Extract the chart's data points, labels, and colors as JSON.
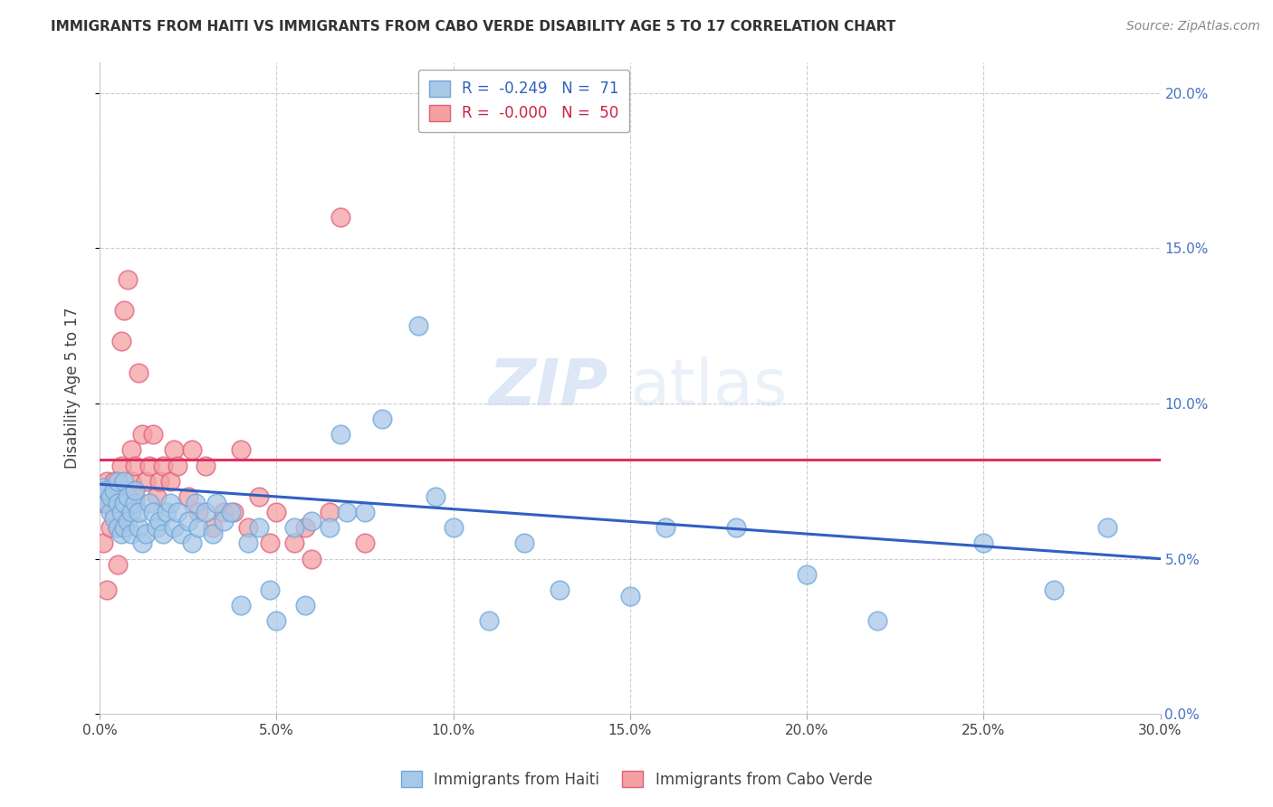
{
  "title": "IMMIGRANTS FROM HAITI VS IMMIGRANTS FROM CABO VERDE DISABILITY AGE 5 TO 17 CORRELATION CHART",
  "source": "Source: ZipAtlas.com",
  "ylabel": "Disability Age 5 to 17",
  "xlim": [
    0.0,
    0.3
  ],
  "ylim": [
    0.0,
    0.21
  ],
  "xticks": [
    0.0,
    0.05,
    0.1,
    0.15,
    0.2,
    0.25,
    0.3
  ],
  "xtick_labels": [
    "0.0%",
    "5.0%",
    "10.0%",
    "15.0%",
    "20.0%",
    "25.0%",
    "30.0%"
  ],
  "yticks": [
    0.0,
    0.05,
    0.1,
    0.15,
    0.2
  ],
  "ytick_labels": [
    "0.0%",
    "5.0%",
    "10.0%",
    "15.0%",
    "20.0%"
  ],
  "haiti_color": "#a8c8e8",
  "caboverde_color": "#f4a0a0",
  "haiti_edge": "#6fa8dc",
  "caboverde_edge": "#e06080",
  "haiti_R": "-0.249",
  "haiti_N": "71",
  "caboverde_R": "-0.000",
  "caboverde_N": "50",
  "watermark_zip": "ZIP",
  "watermark_atlas": "atlas",
  "haiti_scatter_x": [
    0.001,
    0.002,
    0.002,
    0.003,
    0.003,
    0.004,
    0.004,
    0.005,
    0.005,
    0.005,
    0.006,
    0.006,
    0.007,
    0.007,
    0.007,
    0.008,
    0.008,
    0.009,
    0.009,
    0.01,
    0.01,
    0.011,
    0.011,
    0.012,
    0.013,
    0.014,
    0.015,
    0.016,
    0.017,
    0.018,
    0.019,
    0.02,
    0.021,
    0.022,
    0.023,
    0.025,
    0.026,
    0.027,
    0.028,
    0.03,
    0.032,
    0.033,
    0.035,
    0.037,
    0.04,
    0.042,
    0.045,
    0.048,
    0.05,
    0.055,
    0.058,
    0.06,
    0.065,
    0.068,
    0.07,
    0.075,
    0.08,
    0.09,
    0.095,
    0.1,
    0.11,
    0.12,
    0.13,
    0.15,
    0.16,
    0.18,
    0.2,
    0.22,
    0.25,
    0.27,
    0.285
  ],
  "haiti_scatter_y": [
    0.073,
    0.068,
    0.072,
    0.065,
    0.07,
    0.063,
    0.072,
    0.06,
    0.068,
    0.075,
    0.058,
    0.065,
    0.06,
    0.068,
    0.075,
    0.062,
    0.07,
    0.065,
    0.058,
    0.068,
    0.072,
    0.06,
    0.065,
    0.055,
    0.058,
    0.068,
    0.065,
    0.06,
    0.062,
    0.058,
    0.065,
    0.068,
    0.06,
    0.065,
    0.058,
    0.062,
    0.055,
    0.068,
    0.06,
    0.065,
    0.058,
    0.068,
    0.062,
    0.065,
    0.035,
    0.055,
    0.06,
    0.04,
    0.03,
    0.06,
    0.035,
    0.062,
    0.06,
    0.09,
    0.065,
    0.065,
    0.095,
    0.125,
    0.07,
    0.06,
    0.03,
    0.055,
    0.04,
    0.038,
    0.06,
    0.06,
    0.045,
    0.03,
    0.055,
    0.04,
    0.06
  ],
  "caboverde_scatter_x": [
    0.001,
    0.001,
    0.002,
    0.002,
    0.003,
    0.003,
    0.004,
    0.004,
    0.005,
    0.005,
    0.006,
    0.006,
    0.006,
    0.007,
    0.007,
    0.008,
    0.008,
    0.009,
    0.009,
    0.01,
    0.01,
    0.011,
    0.012,
    0.013,
    0.014,
    0.015,
    0.016,
    0.017,
    0.018,
    0.02,
    0.021,
    0.022,
    0.025,
    0.026,
    0.028,
    0.03,
    0.032,
    0.035,
    0.038,
    0.04,
    0.042,
    0.045,
    0.048,
    0.05,
    0.055,
    0.058,
    0.06,
    0.065,
    0.068,
    0.075
  ],
  "caboverde_scatter_y": [
    0.068,
    0.055,
    0.04,
    0.075,
    0.06,
    0.07,
    0.065,
    0.075,
    0.048,
    0.06,
    0.072,
    0.08,
    0.12,
    0.065,
    0.13,
    0.068,
    0.14,
    0.075,
    0.085,
    0.07,
    0.08,
    0.11,
    0.09,
    0.075,
    0.08,
    0.09,
    0.07,
    0.075,
    0.08,
    0.075,
    0.085,
    0.08,
    0.07,
    0.085,
    0.065,
    0.08,
    0.06,
    0.065,
    0.065,
    0.085,
    0.06,
    0.07,
    0.055,
    0.065,
    0.055,
    0.06,
    0.05,
    0.065,
    0.16,
    0.055
  ],
  "haiti_trend_x": [
    0.0,
    0.3
  ],
  "haiti_trend_y": [
    0.074,
    0.05
  ],
  "caboverde_trend_x": [
    0.0,
    0.3
  ],
  "caboverde_trend_y": [
    0.082,
    0.082
  ],
  "grid_color": "#cccccc"
}
